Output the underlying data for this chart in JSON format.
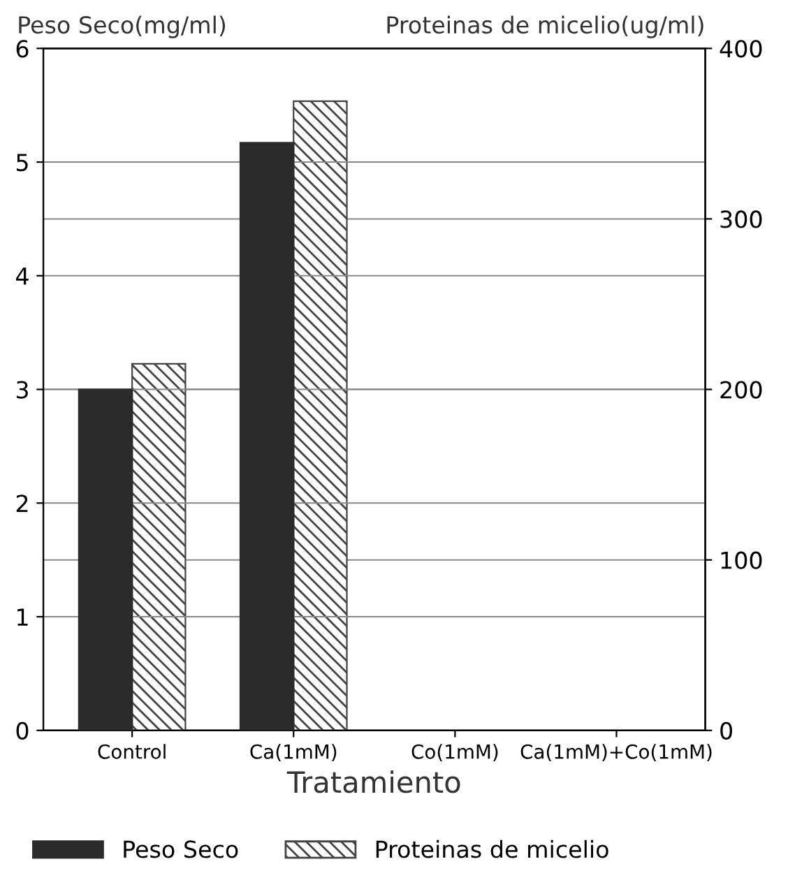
{
  "chart_data": {
    "type": "bar",
    "xlabel": "Tratamiento",
    "ylabel": "Peso Seco(mg/ml)",
    "y2label": "Proteinas de micelio(ug/ml)",
    "categories": [
      "Control",
      "Ca(1mM)",
      "Co(1mM)",
      "Ca(1mM)+Co(1mM)"
    ],
    "series": [
      {
        "name": "Peso Seco",
        "color": "#2b2b2b",
        "values": [
          3.0,
          5.17,
          null,
          null
        ]
      },
      {
        "name": "Proteinas de micelio",
        "color": "#444444",
        "axis": "y2",
        "values": [
          215,
          369,
          null,
          null
        ]
      }
    ],
    "ylim": [
      0,
      6
    ],
    "yticks": [
      0,
      1,
      2,
      3,
      4,
      5,
      6
    ],
    "y2lim": [
      0,
      400
    ],
    "y2ticks": [
      0,
      100,
      200,
      300,
      400
    ],
    "grid": "y",
    "legend": "bottom"
  }
}
